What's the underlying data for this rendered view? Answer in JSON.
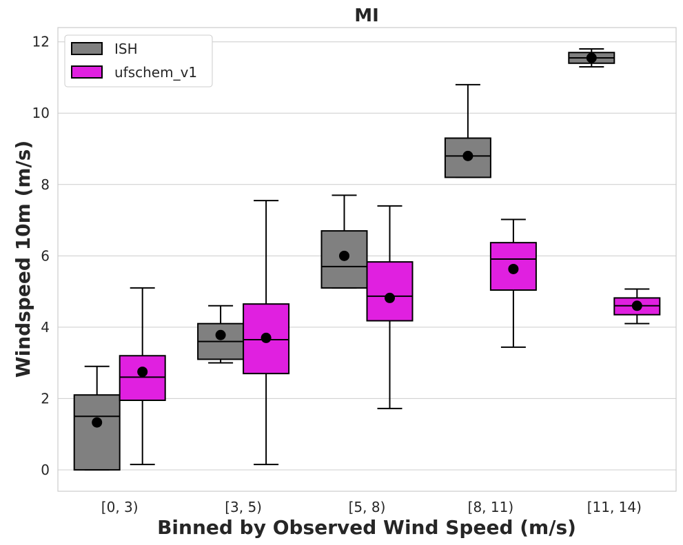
{
  "chart_data": {
    "type": "box",
    "title": "MI",
    "xlabel": "Binned by Observed Wind Speed (m/s)",
    "ylabel": "Windspeed 10m (m/s)",
    "ylim": [
      -0.6,
      12.4
    ],
    "yticks": [
      0,
      2,
      4,
      6,
      8,
      10,
      12
    ],
    "grid": "horizontal",
    "legend": "top-left",
    "categories": [
      "[0, 3)",
      "[3, 5)",
      "[5, 8)",
      "[8, 11)",
      "[11, 14)"
    ],
    "series": [
      {
        "name": "ISH",
        "color": "#808080",
        "boxes": [
          {
            "whisker_low": 0.0,
            "q1": 0.0,
            "median": 1.5,
            "q3": 2.1,
            "whisker_high": 2.9,
            "mean": 1.33
          },
          {
            "whisker_low": 3.0,
            "q1": 3.1,
            "median": 3.6,
            "q3": 4.1,
            "whisker_high": 4.6,
            "mean": 3.78
          },
          {
            "whisker_low": 5.1,
            "q1": 5.1,
            "median": 5.7,
            "q3": 6.7,
            "whisker_high": 7.7,
            "mean": 6.0
          },
          {
            "whisker_low": 8.2,
            "q1": 8.2,
            "median": 8.8,
            "q3": 9.3,
            "whisker_high": 10.8,
            "mean": 8.8
          },
          {
            "whisker_low": 11.3,
            "q1": 11.4,
            "median": 11.55,
            "q3": 11.7,
            "whisker_high": 11.8,
            "mean": 11.55
          }
        ]
      },
      {
        "name": "ufschem_v1",
        "color": "#e020e0",
        "boxes": [
          {
            "whisker_low": 0.15,
            "q1": 1.95,
            "median": 2.6,
            "q3": 3.2,
            "whisker_high": 5.1,
            "mean": 2.75
          },
          {
            "whisker_low": 0.15,
            "q1": 2.7,
            "median": 3.65,
            "q3": 4.65,
            "whisker_high": 7.55,
            "mean": 3.7
          },
          {
            "whisker_low": 1.72,
            "q1": 4.18,
            "median": 4.87,
            "q3": 5.83,
            "whisker_high": 7.4,
            "mean": 4.82
          },
          {
            "whisker_low": 3.44,
            "q1": 5.04,
            "median": 5.91,
            "q3": 6.37,
            "whisker_high": 7.02,
            "mean": 5.63
          },
          {
            "whisker_low": 4.1,
            "q1": 4.35,
            "median": 4.6,
            "q3": 4.82,
            "whisker_high": 5.07,
            "mean": 4.6
          }
        ]
      }
    ]
  }
}
